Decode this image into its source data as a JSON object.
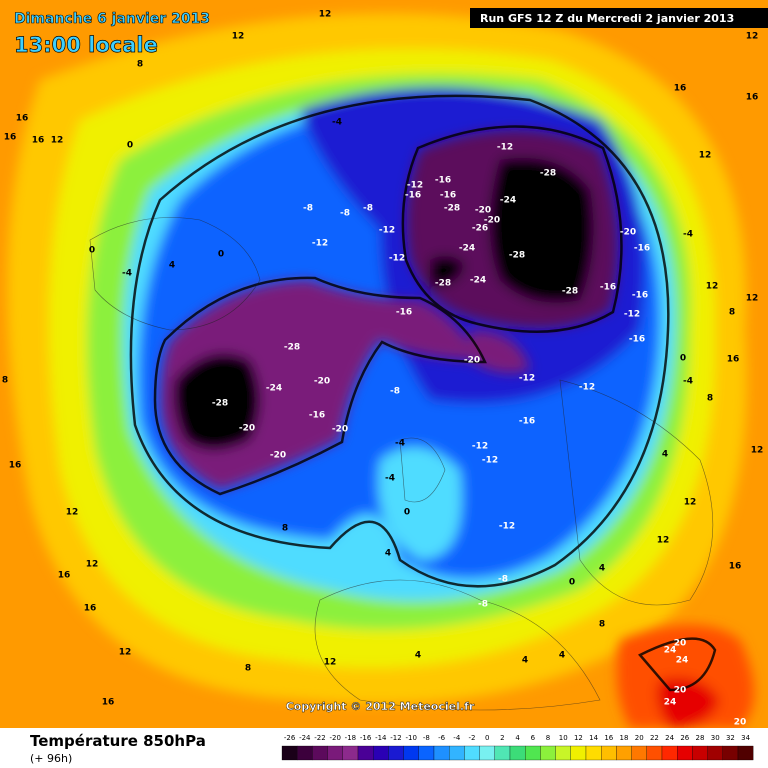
{
  "header": {
    "date": "Dimanche 6 janvier 2013",
    "time": "13:00 locale",
    "run": "Run GFS 12 Z du Mercredi 2 janvier 2013"
  },
  "copyright": "Copyright © 2012 Meteociel.fr",
  "footer": {
    "title": "Température 850hPa",
    "lead": "(+ 96h)"
  },
  "scale": {
    "ticks": [
      -26,
      -24,
      -22,
      -20,
      -18,
      -16,
      -14,
      -12,
      -10,
      -8,
      -6,
      -4,
      -2,
      0,
      2,
      4,
      6,
      8,
      10,
      12,
      14,
      16,
      18,
      20,
      22,
      24,
      26,
      28,
      30,
      32,
      34
    ],
    "colors": [
      "#1a0018",
      "#3c003c",
      "#5c0a5c",
      "#7a1a7a",
      "#8c2a8c",
      "#4a0096",
      "#2a00b4",
      "#1a1ad2",
      "#0038f0",
      "#0a64ff",
      "#1e90ff",
      "#32b4ff",
      "#50dcff",
      "#78f0f0",
      "#50e6b4",
      "#3cdc78",
      "#50e650",
      "#8cf03c",
      "#c8f528",
      "#f0f000",
      "#ffdc00",
      "#ffbe00",
      "#ffa000",
      "#ff7800",
      "#ff5000",
      "#ff2800",
      "#e60000",
      "#c80000",
      "#a00000",
      "#780000",
      "#500000"
    ]
  },
  "contour_labels": [
    12,
    12,
    8,
    12,
    16,
    16,
    16,
    12,
    0,
    16,
    16,
    12,
    -4,
    -12,
    -28,
    -16,
    -12,
    -16,
    -16,
    -24,
    -28,
    -8,
    -8,
    -8,
    -20,
    -20,
    -26,
    -12,
    -12,
    -24,
    -28,
    -20,
    -16,
    -4,
    -12,
    -28,
    -24,
    -28,
    -16,
    -16,
    -12,
    -16,
    -16,
    0,
    -4,
    4,
    0,
    -28,
    -24,
    -20,
    -28,
    -20,
    -16,
    -20,
    -20,
    -20,
    -12,
    -12,
    -8,
    -16,
    -12,
    -12,
    -4,
    -4,
    0,
    -12,
    4,
    -8,
    -8,
    0,
    4,
    0,
    -4,
    12,
    12,
    8,
    16,
    4,
    12,
    12,
    16,
    12,
    20,
    24,
    24,
    20,
    24,
    20,
    8,
    4,
    4,
    4,
    12,
    8,
    12,
    16,
    12,
    16,
    16,
    12,
    16,
    8,
    8,
    8
  ]
}
